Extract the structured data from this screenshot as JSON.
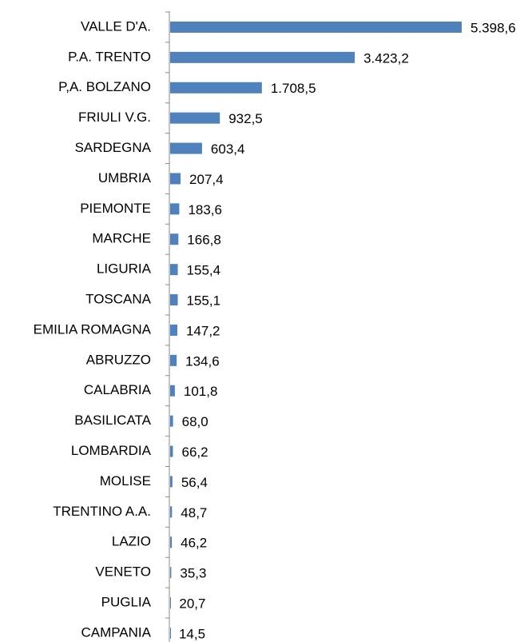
{
  "chart_data": {
    "type": "bar",
    "orientation": "horizontal",
    "categories": [
      "VALLE D'A.",
      "P.A. TRENTO",
      "P,A. BOLZANO",
      "FRIULI V.G.",
      "SARDEGNA",
      "UMBRIA",
      "PIEMONTE",
      "MARCHE",
      "LIGURIA",
      "TOSCANA",
      "EMILIA ROMAGNA",
      "ABRUZZO",
      "CALABRIA",
      "BASILICATA",
      "LOMBARDIA",
      "MOLISE",
      "TRENTINO A.A.",
      "LAZIO",
      "VENETO",
      "PUGLIA",
      "CAMPANIA"
    ],
    "values": [
      5398.6,
      3423.2,
      1708.5,
      932.5,
      603.4,
      207.4,
      183.6,
      166.8,
      155.4,
      155.1,
      147.2,
      134.6,
      101.8,
      68.0,
      66.2,
      56.4,
      48.7,
      46.2,
      35.3,
      20.7,
      14.5
    ],
    "value_labels": [
      "5.398,6",
      "3.423,2",
      "1.708,5",
      "932,5",
      "603,4",
      "207,4",
      "183,6",
      "166,8",
      "155,4",
      "155,1",
      "147,2",
      "134,6",
      "101,8",
      "68,0",
      "66,2",
      "56,4",
      "48,7",
      "46,2",
      "35,3",
      "20,7",
      "14,5"
    ],
    "color": "#4f81bd"
  }
}
